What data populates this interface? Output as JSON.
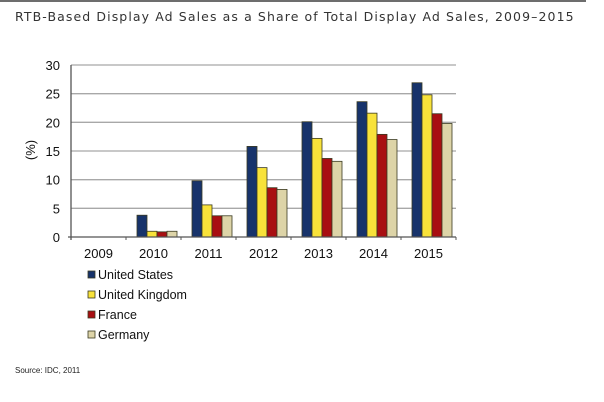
{
  "chart_data": {
    "type": "bar",
    "title": "RTB-Based Display Ad Sales as a Share of Total Display Ad Sales, 2009–2015",
    "xlabel": "",
    "ylabel": "(%)",
    "ylim": [
      0,
      30
    ],
    "yticks": [
      0,
      5,
      10,
      15,
      20,
      25,
      30
    ],
    "grid": true,
    "legend_position": "bottom-left",
    "categories": [
      "2009",
      "2010",
      "2011",
      "2012",
      "2013",
      "2014",
      "2015"
    ],
    "series": [
      {
        "name": "United States",
        "color": "#17336b",
        "values": [
          0,
          3.8,
          9.8,
          15.8,
          20.1,
          23.6,
          26.9
        ]
      },
      {
        "name": "United Kingdom",
        "color": "#f8e23a",
        "values": [
          0,
          1.0,
          5.6,
          12.1,
          17.2,
          21.6,
          24.8
        ]
      },
      {
        "name": "France",
        "color": "#a80f12",
        "values": [
          0,
          0.9,
          3.7,
          8.6,
          13.7,
          17.9,
          21.5
        ]
      },
      {
        "name": "Germany",
        "color": "#ddd4a8",
        "values": [
          0,
          1.0,
          3.7,
          8.3,
          13.2,
          17.0,
          19.8
        ]
      }
    ],
    "source": "Source: IDC, 2011"
  }
}
